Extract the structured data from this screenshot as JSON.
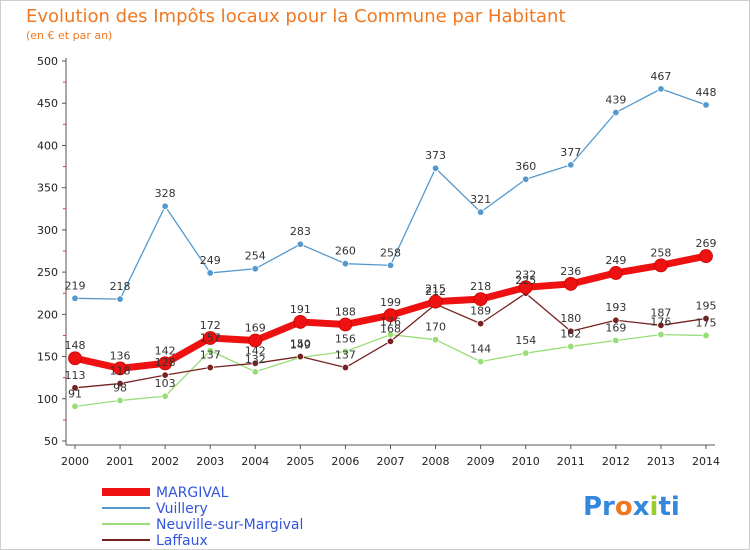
{
  "chart_data": {
    "type": "line",
    "title": "Evolution des Impôts locaux pour la Commune par Habitant",
    "subtitle": "(en € et par an)",
    "x": [
      "2000",
      "2001",
      "2002",
      "2003",
      "2004",
      "2005",
      "2006",
      "2007",
      "2008",
      "2009",
      "2010",
      "2011",
      "2012",
      "2013",
      "2014"
    ],
    "ylim": [
      50,
      500
    ],
    "yticks": [
      50,
      100,
      150,
      200,
      250,
      300,
      350,
      400,
      450,
      500
    ],
    "grid": false,
    "legend_position": "bottom-left",
    "series": [
      {
        "name": "MARGIVAL",
        "color": "#ee1111",
        "values": [
          148,
          136,
          142,
          172,
          169,
          191,
          188,
          199,
          215,
          218,
          232,
          236,
          249,
          258,
          269
        ]
      },
      {
        "name": "Vuillery",
        "color": "#5599cc",
        "values": [
          219,
          218,
          328,
          249,
          254,
          283,
          260,
          258,
          373,
          321,
          360,
          377,
          439,
          467,
          448
        ]
      },
      {
        "name": "Neuville-sur-Margival",
        "color": "#99dd77",
        "values": [
          91,
          98,
          103,
          157,
          132,
          149,
          156,
          176,
          170,
          144,
          154,
          162,
          169,
          176,
          175
        ]
      },
      {
        "name": "Laffaux",
        "color": "#772222",
        "values": [
          113,
          118,
          128,
          137,
          142,
          150,
          137,
          168,
          212,
          189,
          225,
          180,
          193,
          187,
          195
        ]
      }
    ]
  },
  "logo": {
    "text_parts": [
      "Pr",
      "o",
      "x",
      "i",
      "ti"
    ]
  }
}
